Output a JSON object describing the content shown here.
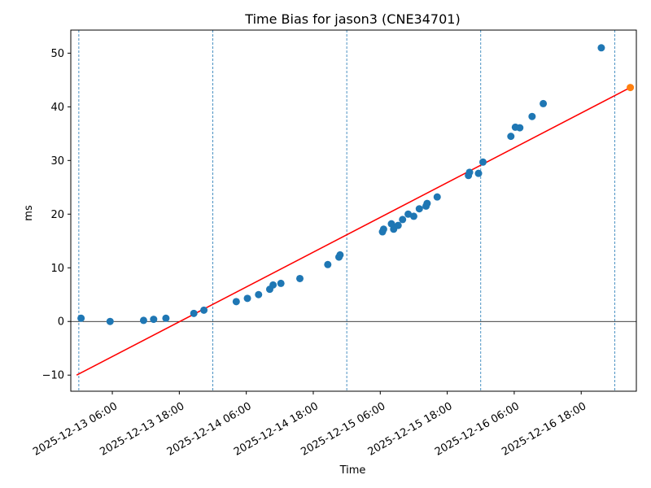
{
  "chart_data": {
    "type": "scatter",
    "title": "Time Bias for jason3 (CNE34701)",
    "xlabel": "Time",
    "ylabel": "ms",
    "x_tick_labels": [
      "2025-12-13 06:00",
      "2025-12-13 18:00",
      "2025-12-14 06:00",
      "2025-12-14 18:00",
      "2025-12-15 06:00",
      "2025-12-15 18:00",
      "2025-12-16 06:00",
      "2025-12-16 18:00"
    ],
    "x_ticks_hours": [
      6,
      18,
      30,
      42,
      54,
      66,
      78,
      90
    ],
    "y_ticks": [
      -10,
      0,
      10,
      20,
      30,
      40,
      50
    ],
    "xlim": [
      -0.72,
      49.94
    ],
    "ylim": [
      -13.0,
      54.3
    ],
    "day_boundaries": [
      0.0,
      12.0,
      24.0,
      36.0,
      48.0
    ],
    "zero_line": 0,
    "colors": {
      "points": "#1f77b4",
      "fit_line": "#ff0000",
      "highlight_point": "#ff7f0e",
      "day_lines": "#1f77b4",
      "zero_line": "#000000"
    },
    "series": [
      {
        "kind": "points",
        "x": [
          0.2,
          2.8,
          5.8,
          6.7,
          7.8,
          10.3,
          11.2,
          14.1,
          15.1,
          16.1,
          17.1,
          17.4,
          18.1,
          19.8,
          22.3,
          23.3,
          23.4,
          27.2,
          27.3,
          28.0,
          28.2,
          28.6,
          29.0,
          29.5,
          30.0,
          30.5,
          31.1,
          31.2,
          32.1,
          34.9,
          35.0,
          35.8,
          36.2,
          38.7,
          39.1,
          39.5,
          40.6,
          41.6,
          46.8
        ],
        "y": [
          0.6,
          0.0,
          0.2,
          0.4,
          0.6,
          1.5,
          2.1,
          3.7,
          4.3,
          5.0,
          6.0,
          6.8,
          7.1,
          8.0,
          10.6,
          12.0,
          12.4,
          16.7,
          17.2,
          18.2,
          17.2,
          17.9,
          19.0,
          20.0,
          19.6,
          21.0,
          21.5,
          22.0,
          23.2,
          27.2,
          27.8,
          27.6,
          29.7,
          34.5,
          36.2,
          36.1,
          38.2,
          40.6,
          51.0
        ]
      },
      {
        "kind": "fit_line",
        "x": [
          -0.2,
          49.4
        ],
        "y": [
          -10.0,
          43.6
        ]
      },
      {
        "kind": "highlight_point",
        "x": [
          49.4
        ],
        "y": [
          43.6
        ]
      }
    ]
  }
}
